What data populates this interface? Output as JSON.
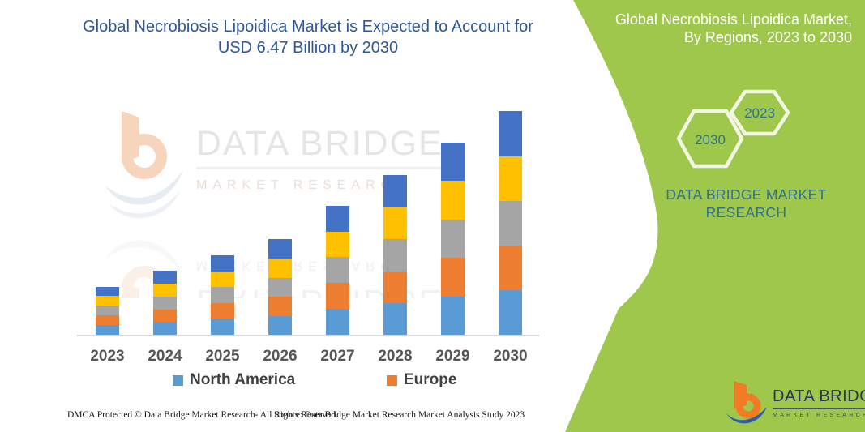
{
  "header": {
    "title_line1": "Global Necrobiosis Lipoidica Market is Expected to Account for",
    "title_line2": "USD 6.47 Billion by 2030"
  },
  "side_panel": {
    "heading_line1": "Global Necrobiosis Lipoidica Market,",
    "heading_line2": "By Regions, 2023 to 2030",
    "hexagon_years": [
      "2030",
      "2023"
    ],
    "brand_line1": "DATA BRIDGE MARKET",
    "brand_line2": "RESEARCH",
    "colors": {
      "background": "#9EC74C",
      "text": "#2E7191",
      "heading": "#FFFFFF"
    }
  },
  "watermark": {
    "brand": "DATA BRIDGE",
    "sub": "MARKET RESEARCH"
  },
  "brand_logo": {
    "name": "DATA BRIDGE",
    "subtitle": "MARKET RESEARCH"
  },
  "chart_data": {
    "type": "bar",
    "stacked": true,
    "title": "Global Necrobiosis Lipoidica Market is Expected to Account for USD 6.47 Billion by 2030",
    "unit": "USD Billion",
    "categories": [
      "2023",
      "2024",
      "2025",
      "2026",
      "2027",
      "2028",
      "2029",
      "2030"
    ],
    "series": [
      {
        "name": "North America",
        "color": "#5B9BD5",
        "values": [
          0.28,
          0.37,
          0.46,
          0.55,
          0.75,
          0.92,
          1.11,
          1.29
        ]
      },
      {
        "name": "Europe",
        "color": "#ED7D31",
        "values": [
          0.28,
          0.37,
          0.46,
          0.55,
          0.75,
          0.92,
          1.11,
          1.29
        ]
      },
      {
        "name": "unlabeled-gray-segment",
        "color": "#A5A5A5",
        "values": [
          0.28,
          0.37,
          0.46,
          0.55,
          0.75,
          0.92,
          1.11,
          1.29
        ]
      },
      {
        "name": "unlabeled-yellow-segment",
        "color": "#FFC000",
        "values": [
          0.28,
          0.37,
          0.46,
          0.56,
          0.74,
          0.93,
          1.12,
          1.3
        ]
      },
      {
        "name": "unlabeled-darkblue-segment",
        "color": "#4472C4",
        "values": [
          0.26,
          0.37,
          0.46,
          0.56,
          0.74,
          0.93,
          1.11,
          1.3
        ]
      }
    ],
    "totals": [
      1.38,
      1.85,
      2.3,
      2.77,
      3.73,
      4.62,
      5.56,
      6.47
    ],
    "ylim": [
      0,
      6.6
    ],
    "grid": false,
    "legend": [
      {
        "label": "North America",
        "color": "#5B9BD5"
      },
      {
        "label": "Europe",
        "color": "#ED7D31"
      }
    ],
    "legend_position": "bottom",
    "note": "Only the North America and Europe segments are named in the visible legend; the gray, yellow and dark-blue stack segments are unlabeled in the image."
  },
  "footer": {
    "left": "DMCA Protected © Data Bridge Market Research-  All Rights Reserved.",
    "right": "Source: Data Bridge Market Research  Market Analysis Study 2023"
  }
}
